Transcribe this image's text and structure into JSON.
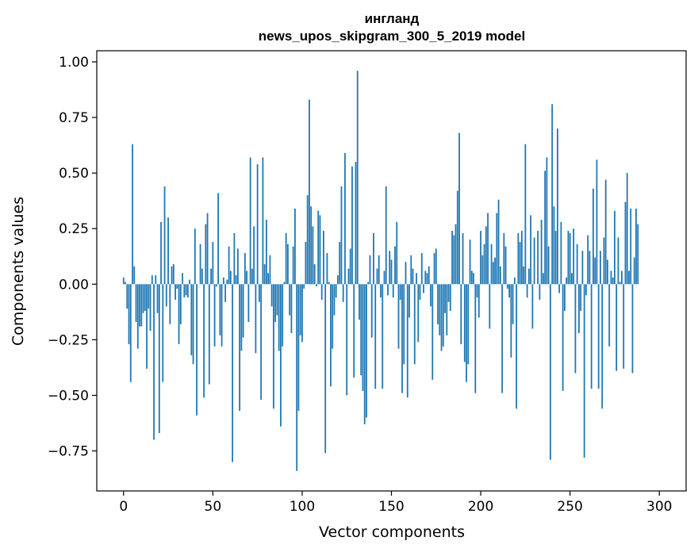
{
  "chart_data": {
    "type": "bar",
    "title": "ингланд",
    "subtitle": "news_upos_skipgram_300_5_2019 model",
    "xlabel": "Vector components",
    "ylabel": "Components values",
    "xlim": [
      -15,
      315
    ],
    "ylim": [
      -0.93,
      1.05
    ],
    "xticks": [
      0,
      50,
      100,
      150,
      200,
      250,
      300
    ],
    "xtick_labels": [
      "0",
      "50",
      "100",
      "150",
      "200",
      "250",
      "300"
    ],
    "yticks": [
      -0.75,
      -0.5,
      -0.25,
      0.0,
      0.25,
      0.5,
      0.75,
      1.0
    ],
    "ytick_labels": [
      "−0.75",
      "−0.50",
      "−0.25",
      "0.00",
      "0.25",
      "0.50",
      "0.75",
      "1.00"
    ],
    "grid": false,
    "bar_color": "#1f77b4",
    "values": [
      0.03,
      0.01,
      -0.11,
      -0.27,
      -0.44,
      0.63,
      0.08,
      -0.17,
      -0.29,
      -0.19,
      -0.19,
      -0.13,
      -0.12,
      -0.38,
      -0.11,
      -0.21,
      0.04,
      -0.7,
      0.04,
      -0.13,
      -0.67,
      0.28,
      -0.44,
      0.44,
      -0.1,
      0.3,
      -0.18,
      0.08,
      0.09,
      -0.07,
      -0.02,
      -0.27,
      -0.18,
      0.05,
      -0.06,
      -0.05,
      -0.06,
      0.02,
      -0.32,
      -0.36,
      0.25,
      -0.59,
      0.0,
      0.18,
      0.07,
      -0.51,
      0.27,
      0.32,
      -0.45,
      0.07,
      0.19,
      -0.28,
      -0.01,
      0.41,
      -0.23,
      -0.28,
      0.03,
      -0.08,
      0.02,
      0.17,
      0.06,
      -0.8,
      0.23,
      0.04,
      0.16,
      -0.57,
      -0.3,
      -0.24,
      0.14,
      0.06,
      -0.17,
      0.57,
      0.07,
      0.26,
      -0.31,
      0.54,
      -0.08,
      -0.52,
      0.57,
      0.09,
      0.29,
      0.05,
      0.13,
      -0.1,
      -0.56,
      -0.17,
      -0.14,
      -0.3,
      -0.64,
      -0.28,
      0.01,
      0.23,
      0.18,
      -0.14,
      -0.22,
      0.17,
      0.34,
      -0.84,
      -0.57,
      -0.23,
      -0.26,
      -0.02,
      0.19,
      0.4,
      0.83,
      0.35,
      0.26,
      0.09,
      -0.01,
      0.33,
      0.31,
      -0.07,
      0.24,
      -0.76,
      0.14,
      0.01,
      -0.46,
      -0.29,
      -0.14,
      -0.06,
      0.04,
      0.19,
      0.44,
      -0.08,
      0.59,
      -0.5,
      0.07,
      0.16,
      0.53,
      -0.42,
      0.55,
      0.96,
      -0.16,
      -0.41,
      -0.48,
      -0.63,
      -0.6,
      0.01,
      0.13,
      -0.24,
      0.23,
      -0.47,
      0.07,
      0.13,
      -0.06,
      -0.47,
      0.06,
      0.44,
      -0.05,
      0.15,
      0.11,
      -0.06,
      0.17,
      0.28,
      -0.29,
      -0.07,
      -0.49,
      -0.36,
      0.1,
      -0.51,
      -0.15,
      0.13,
      0.07,
      -0.36,
      0.05,
      -0.26,
      -0.07,
      0.14,
      -0.04,
      0.06,
      0.05,
      0.08,
      -0.1,
      -0.43,
      0.14,
      0.16,
      -0.18,
      -0.23,
      -0.3,
      -0.28,
      -0.13,
      -0.23,
      -0.08,
      -0.12,
      0.24,
      0.22,
      0.27,
      0.42,
      0.68,
      -0.27,
      0.23,
      -0.35,
      -0.44,
      -0.36,
      0.2,
      0.06,
      0.05,
      -0.49,
      -0.06,
      -0.15,
      0.24,
      0.13,
      0.18,
      0.26,
      0.32,
      -0.2,
      0.18,
      0.1,
      0.12,
      0.32,
      0.38,
      0.08,
      -0.49,
      0.23,
      0.17,
      -0.02,
      -0.06,
      -0.33,
      -0.18,
      0.03,
      -0.56,
      0.23,
      0.19,
      0.24,
      0.08,
      0.63,
      -0.06,
      0.07,
      0.31,
      -0.2,
      0.21,
      0.0,
      0.24,
      -0.07,
      0.29,
      0.05,
      0.51,
      0.57,
      0.17,
      -0.79,
      0.81,
      0.35,
      0.24,
      0.7,
      -0.04,
      0.28,
      -0.48,
      -0.12,
      0.03,
      0.24,
      0.23,
      0.05,
      0.25,
      -0.4,
      0.18,
      -0.22,
      -0.12,
      0.15,
      -0.78,
      -0.05,
      0.22,
      0.15,
      -0.47,
      0.43,
      0.12,
      0.56,
      -0.47,
      0.15,
      -0.56,
      0.21,
      0.47,
      0.11,
      -0.28,
      0.06,
      0.03,
      0.33,
      -0.39,
      0.21,
      0.01,
      0.06,
      -0.38,
      0.37,
      0.5,
      0.06,
      0.34,
      -0.4,
      0.12,
      0.34,
      0.27,
      0.0
    ]
  }
}
